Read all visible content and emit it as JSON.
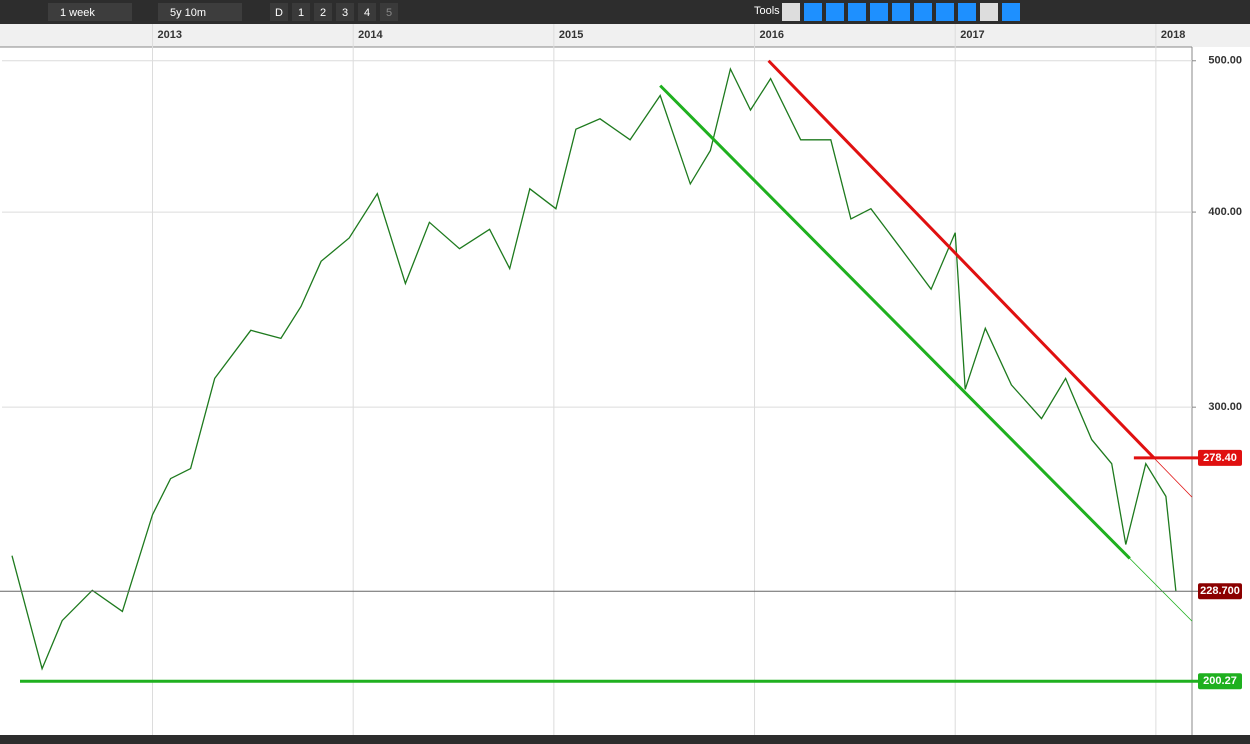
{
  "toolbar": {
    "interval": "1 week",
    "range": "5y 10m",
    "buttons": [
      "D",
      "1",
      "2",
      "3",
      "4",
      "5"
    ],
    "tools": "Tools"
  },
  "chart_data": {
    "type": "line",
    "log_scale": true,
    "grid": true,
    "color": "#1e7a1e",
    "x": [
      2012.3,
      2012.45,
      2012.55,
      2012.7,
      2012.85,
      2013.0,
      2013.09,
      2013.19,
      2013.31,
      2013.49,
      2013.64,
      2013.74,
      2013.84,
      2013.98,
      2014.12,
      2014.26,
      2014.38,
      2014.53,
      2014.68,
      2014.78,
      2014.88,
      2015.01,
      2015.11,
      2015.23,
      2015.38,
      2015.53,
      2015.68,
      2015.78,
      2015.88,
      2015.98,
      2016.08,
      2016.23,
      2016.38,
      2016.48,
      2016.58,
      2016.73,
      2016.88,
      2017.0,
      2017.05,
      2017.15,
      2017.28,
      2017.43,
      2017.55,
      2017.68,
      2017.78,
      2017.85,
      2017.95,
      2018.05,
      2018.1
    ],
    "values": [
      241,
      204,
      219,
      229,
      222,
      256,
      270,
      274,
      313,
      336,
      332,
      348,
      372,
      385,
      411,
      360,
      394,
      379,
      390,
      368,
      414,
      402,
      452,
      459,
      445,
      475,
      417,
      438,
      494,
      465,
      487,
      445,
      445,
      396,
      402,
      379,
      357,
      388,
      308,
      337,
      310,
      295,
      313,
      286,
      276,
      245,
      276,
      263,
      228.7
    ],
    "xlim": [
      2012.25,
      2018.18
    ],
    "xticks": [
      2013,
      2014,
      2015,
      2016,
      2017,
      2018
    ],
    "ylim": [
      185,
      508
    ],
    "yticks": [
      {
        "value": 300,
        "label": "300.00"
      },
      {
        "value": 400,
        "label": "400.00"
      },
      {
        "value": 500,
        "label": "500.00"
      }
    ],
    "hlines": [
      {
        "value": 278.4,
        "label": "278.40",
        "color": "#e01010"
      },
      {
        "value": 228.7,
        "label": "228.700",
        "color": "#8b0000"
      },
      {
        "value": 200.27,
        "label": "200.27",
        "color": "#1fb01f"
      }
    ],
    "trendlines": [
      {
        "color": "#e01010",
        "x": [
          2016.07,
          2017.99
        ],
        "y": [
          500,
          278.4
        ]
      },
      {
        "color": "#1fb01f",
        "x": [
          2015.53,
          2017.87
        ],
        "y": [
          482,
          240
        ]
      }
    ]
  }
}
